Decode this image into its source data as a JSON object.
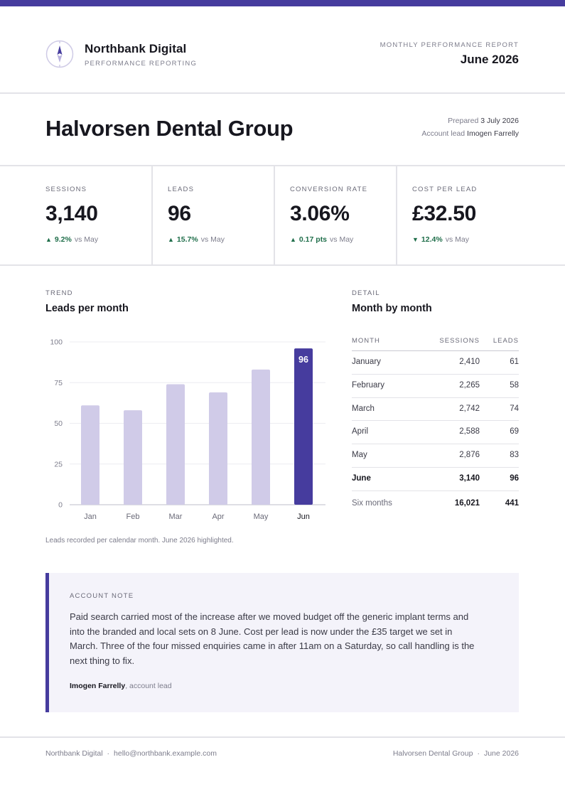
{
  "header": {
    "brand_name": "Northbank Digital",
    "brand_sub": "PERFORMANCE REPORTING",
    "report_label": "MONTHLY PERFORMANCE REPORT",
    "report_period": "June 2026",
    "logo_icon": "compass-icon"
  },
  "client": {
    "name": "Halvorsen Dental Group",
    "prepared_label": "Prepared",
    "prepared_date": "3 July 2026",
    "lead_label": "Account lead",
    "lead_name": "Imogen Farrelly"
  },
  "kpis": [
    {
      "label": "SESSIONS",
      "value": "3,140",
      "direction": "up",
      "change": "9.2%",
      "vs": "vs May"
    },
    {
      "label": "LEADS",
      "value": "96",
      "direction": "up",
      "change": "15.7%",
      "vs": "vs May"
    },
    {
      "label": "CONVERSION RATE",
      "value": "3.06%",
      "direction": "up",
      "change": "0.17 pts",
      "vs": "vs May"
    },
    {
      "label": "COST PER LEAD",
      "value": "£32.50",
      "direction": "down",
      "change": "12.4%",
      "vs": "vs May"
    }
  ],
  "trend": {
    "eyebrow": "TREND",
    "title": "Leads per month",
    "caption": "Leads recorded per calendar month. June 2026 highlighted."
  },
  "chart_data": {
    "type": "bar",
    "title": "Leads per month",
    "categories": [
      "Jan",
      "Feb",
      "Mar",
      "Apr",
      "May",
      "Jun"
    ],
    "values": [
      61,
      58,
      74,
      69,
      83,
      96
    ],
    "highlight_index": 5,
    "highlight_label": "96",
    "y_ticks": [
      "0",
      "25",
      "50",
      "75",
      "100"
    ],
    "ylim": [
      0,
      100
    ],
    "grid": true,
    "bar_color": "#d0cbe8",
    "highlight_color": "#463c9e"
  },
  "detail": {
    "eyebrow": "DETAIL",
    "title": "Month by month",
    "columns": [
      "MONTH",
      "SESSIONS",
      "LEADS"
    ],
    "rows": [
      {
        "month": "January",
        "sessions": "2,410",
        "leads": "61"
      },
      {
        "month": "February",
        "sessions": "2,265",
        "leads": "58"
      },
      {
        "month": "March",
        "sessions": "2,742",
        "leads": "74"
      },
      {
        "month": "April",
        "sessions": "2,588",
        "leads": "69"
      },
      {
        "month": "May",
        "sessions": "2,876",
        "leads": "83"
      },
      {
        "month": "June",
        "sessions": "3,140",
        "leads": "96"
      }
    ],
    "total": {
      "month": "Six months",
      "sessions": "16,021",
      "leads": "441"
    }
  },
  "note": {
    "label": "ACCOUNT NOTE",
    "body": "Paid search carried most of the increase after we moved budget off the generic implant terms and into the branded and local sets on 8 June. Cost per lead is now under the £35 target we set in March. Three of the four missed enquiries came in after 11am on a Saturday, so call handling is the next thing to fix.",
    "author": "Imogen Farrelly",
    "role": ", account lead"
  },
  "footer": {
    "company": "Northbank Digital",
    "email": "hello@northbank.example.com",
    "client": "Halvorsen Dental Group",
    "period": "June 2026",
    "separator": "·"
  },
  "colors": {
    "accent": "#463c9e",
    "positive": "#1f6e4a",
    "muted_bar": "#d0cbe8"
  }
}
